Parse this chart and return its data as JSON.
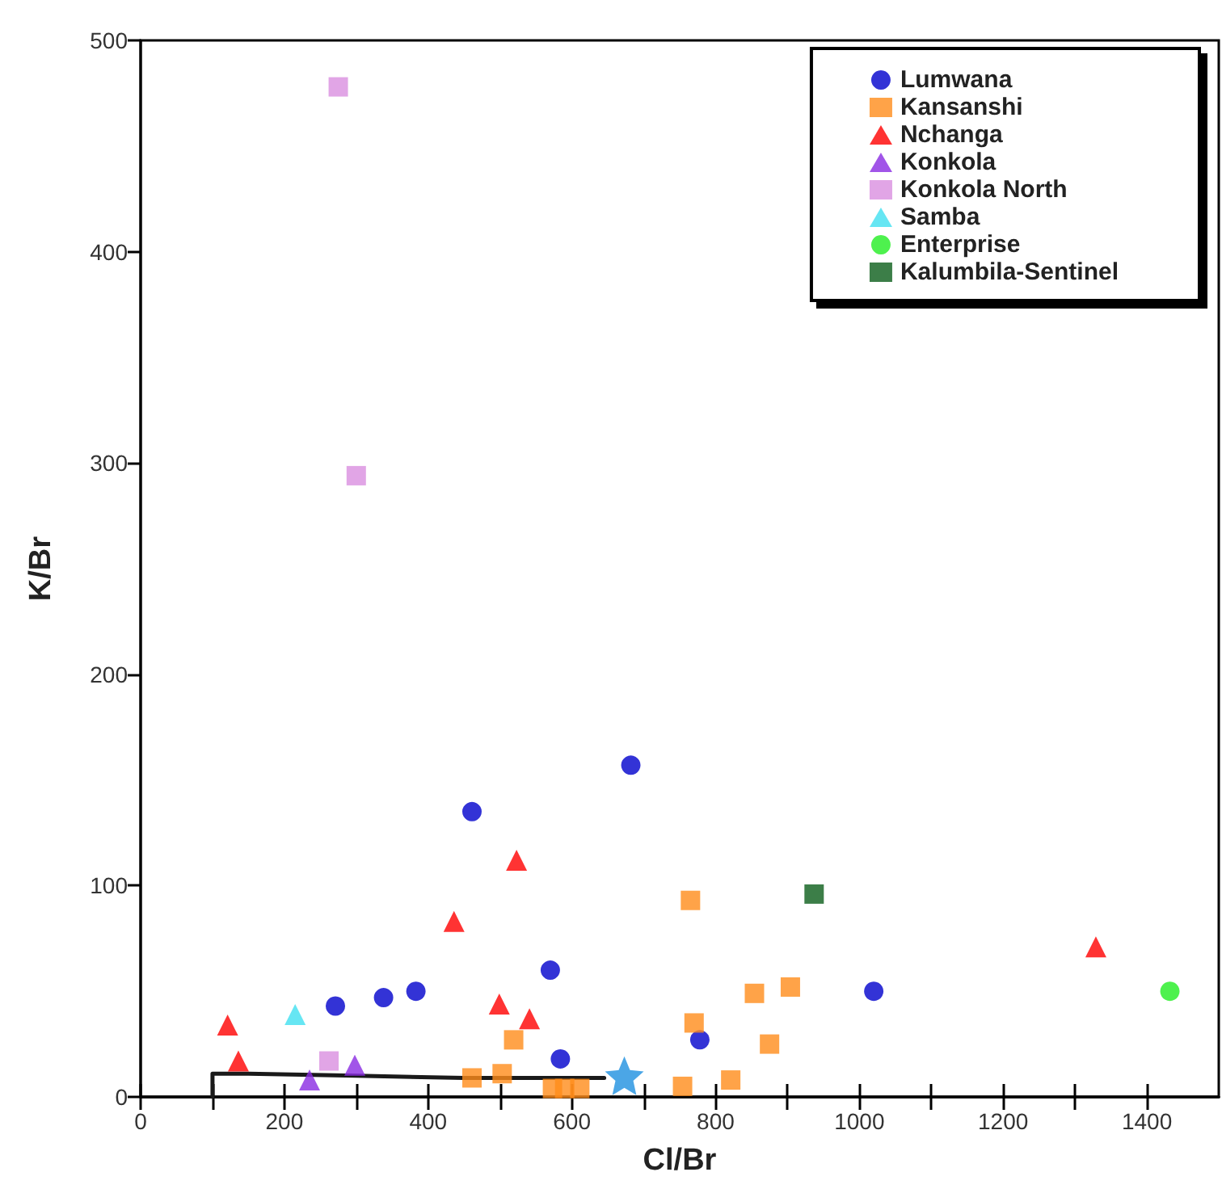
{
  "chart_data": {
    "type": "scatter",
    "xlabel": "Cl/Br",
    "ylabel": "K/Br",
    "xlim": [
      0,
      1500
    ],
    "ylim": [
      0,
      500
    ],
    "xticks": [
      0,
      {
        "value": 100,
        "label": null
      },
      200,
      {
        "value": 300,
        "label": null
      },
      400,
      {
        "value": 500,
        "label": null
      },
      600,
      {
        "value": 700,
        "label": null
      },
      800,
      {
        "value": 900,
        "label": null
      },
      1000,
      {
        "value": 1100,
        "label": null
      },
      1200,
      {
        "value": 1300,
        "label": null
      },
      1400
    ],
    "yticks": [
      0,
      100,
      200,
      300,
      400,
      500
    ],
    "grid": false,
    "legend": "top right",
    "series": [
      {
        "name": "Lumwana",
        "color": "#0000cc",
        "marker": "circle",
        "x": [
          271,
          338,
          383,
          461,
          570,
          584,
          682,
          778,
          1020
        ],
        "values": [
          43,
          47,
          50,
          135,
          60,
          18,
          157,
          27,
          50
        ]
      },
      {
        "name": "Kansanshi",
        "color": "#ff8c1a",
        "marker": "square",
        "x": [
          461,
          503,
          519,
          573,
          590,
          611,
          754,
          765,
          770,
          821,
          854,
          875,
          904
        ],
        "values": [
          9,
          11,
          27,
          4,
          4,
          4,
          5,
          93,
          35,
          8,
          49,
          25,
          52
        ]
      },
      {
        "name": "Nchanga",
        "color": "#ff0000",
        "marker": "triangle",
        "x": [
          121,
          136,
          436,
          523,
          499,
          541,
          1329
        ],
        "values": [
          34,
          17,
          83,
          112,
          44,
          37,
          71
        ]
      },
      {
        "name": "Konkola",
        "color": "#8a2be2",
        "marker": "triangle",
        "x": [
          235,
          298
        ],
        "values": [
          8,
          15
        ]
      },
      {
        "name": "Konkola North",
        "color": "#da8ee0",
        "marker": "square",
        "x": [
          262,
          275,
          300
        ],
        "values": [
          17,
          478,
          294
        ]
      },
      {
        "name": "Samba",
        "color": "#40e0f0",
        "marker": "triangle",
        "x": [
          215
        ],
        "values": [
          39
        ]
      },
      {
        "name": "Enterprise",
        "color": "#22ee22",
        "marker": "circle",
        "x": [
          1432
        ],
        "values": [
          50
        ]
      },
      {
        "name": "Kalumbila-Sentinel",
        "color": "#0b5e1a",
        "marker": "square",
        "x": [
          937
        ],
        "values": [
          96
        ]
      },
      {
        "type": "line",
        "color": "#1a1a1a",
        "marker": "none",
        "line_style": "solid",
        "x": [
          100,
          100,
          150,
          300,
          450,
          600,
          645
        ],
        "values": [
          0,
          11,
          11,
          10,
          9,
          9,
          9
        ]
      },
      {
        "color": "#1e90e0",
        "marker": "star",
        "x": [
          673
        ],
        "values": [
          10
        ]
      }
    ]
  }
}
